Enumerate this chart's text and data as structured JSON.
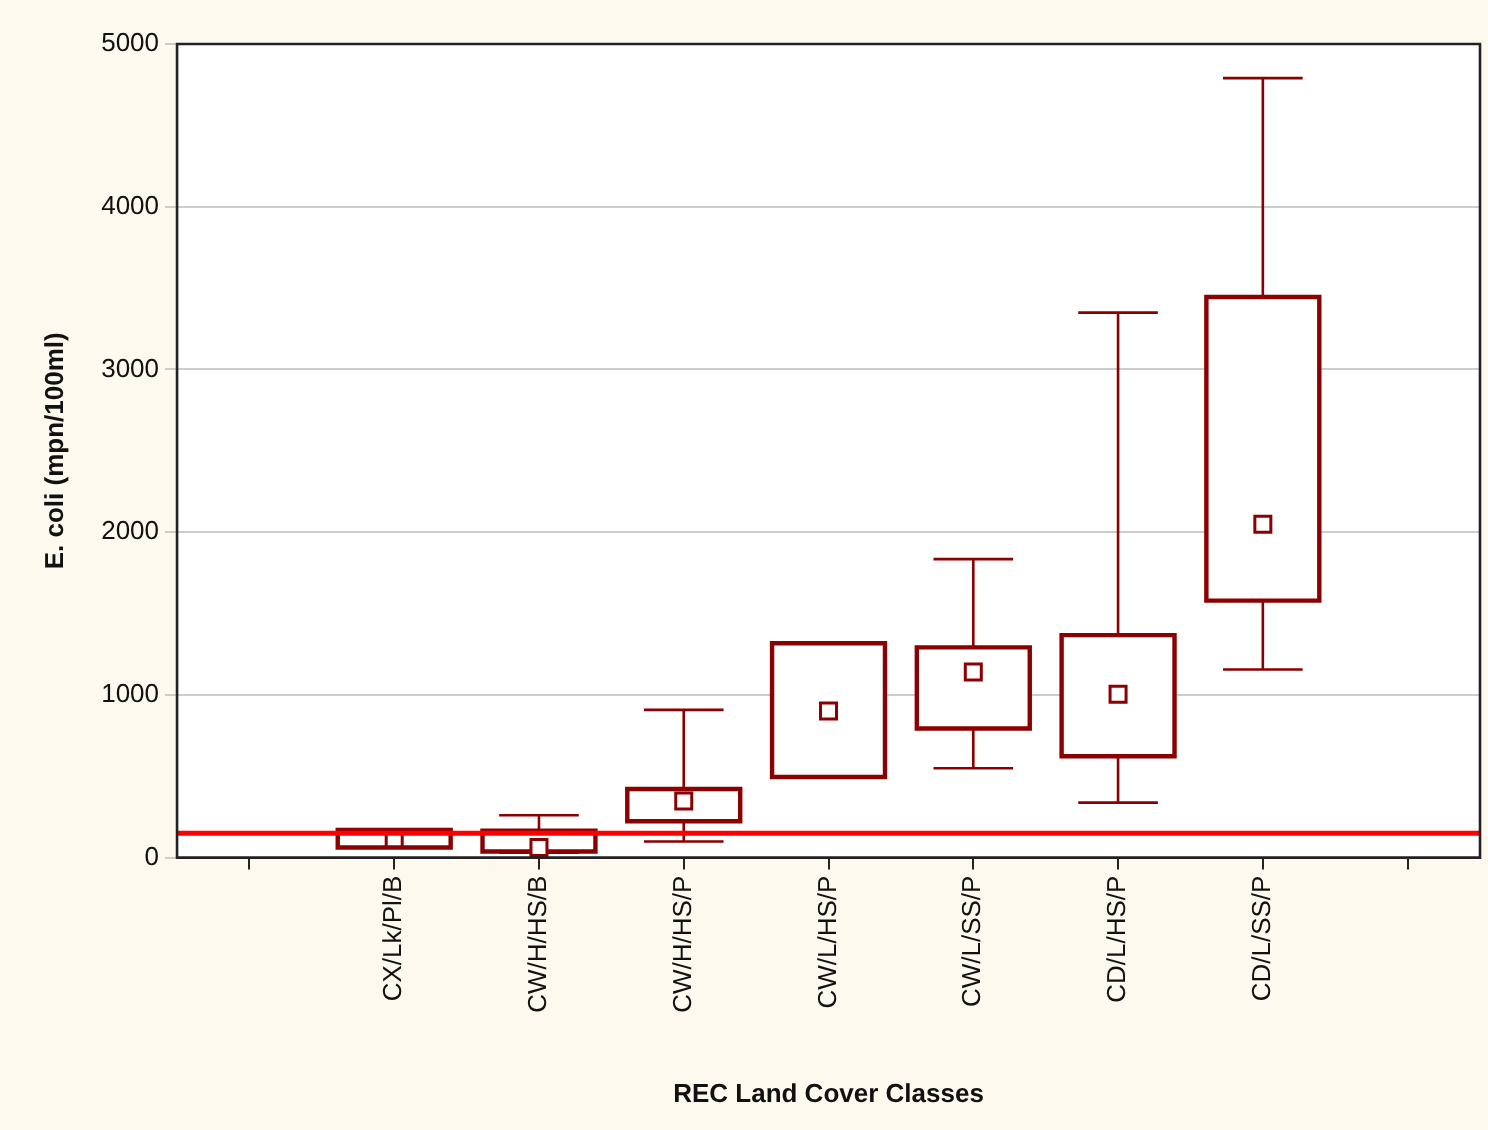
{
  "chart_data": {
    "type": "box",
    "xlabel": "REC Land Cover Classes",
    "ylabel": "E. coli (mpn/100ml)",
    "categories": [
      null,
      "CX/Lk/Pl/B",
      "CW/H/HS/B",
      "CW/H/HS/P",
      "CW/L/HS/P",
      "CW/L/SS/P",
      "CD/L/HS/P",
      "CD/L/SS/P",
      null
    ],
    "color": "#8b0000",
    "boxes": [
      null,
      {
        "low": 62,
        "q1": 62,
        "median": 115,
        "q3": 170,
        "high": 170
      },
      {
        "low": 30,
        "q1": 37,
        "median": 62,
        "q3": 165,
        "high": 260
      },
      {
        "low": 99,
        "q1": 223,
        "median": 347,
        "q3": 421,
        "high": 908
      },
      {
        "low": 495,
        "q1": 495,
        "median": 901,
        "q3": 1317,
        "high": 1317
      },
      {
        "low": 549,
        "q1": 793,
        "median": 1140,
        "q3": 1292,
        "high": 1834
      },
      {
        "low": 338,
        "q1": 623,
        "median": 1003,
        "q3": 1367,
        "high": 3349
      },
      {
        "low": 1156,
        "q1": 1579,
        "median": 2048,
        "q3": 3445,
        "high": 4790
      },
      null
    ],
    "ylim": [
      0,
      5000
    ],
    "yticks": [
      0,
      1000,
      2000,
      3000,
      4000,
      5000
    ],
    "grid": "y",
    "ref_lines": [
      {
        "axis": "y",
        "value": 150,
        "color": "#ff0000"
      }
    ]
  }
}
